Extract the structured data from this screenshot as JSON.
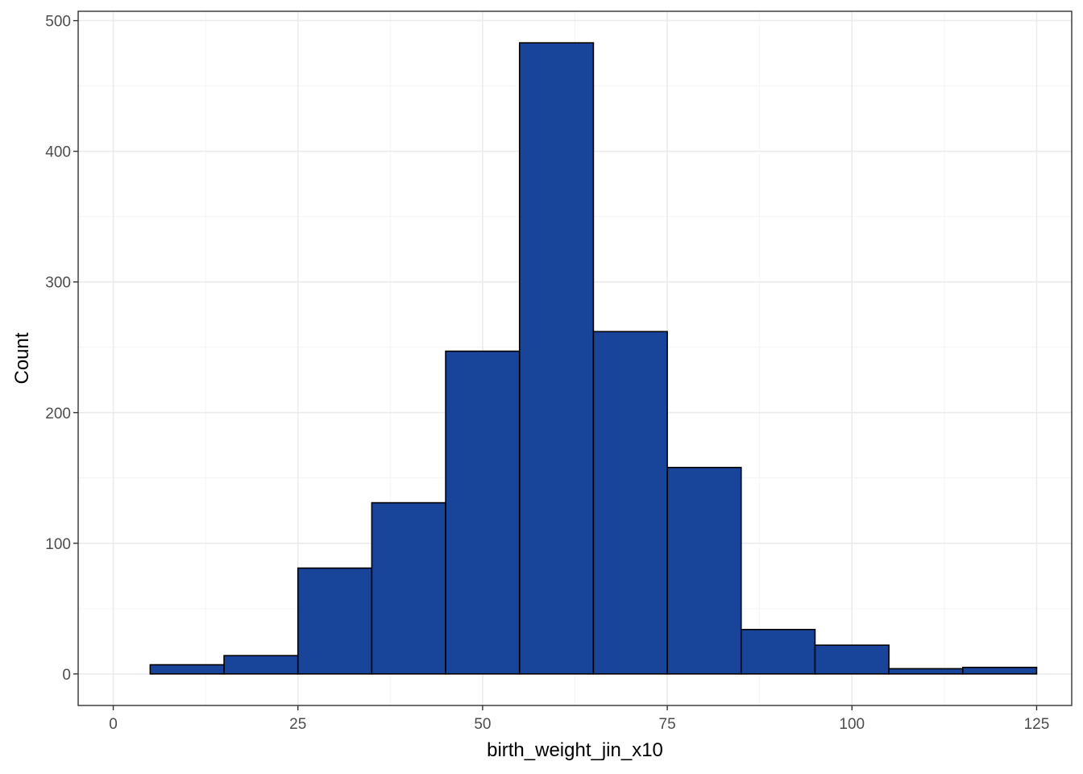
{
  "chart_data": {
    "type": "bar",
    "subtype": "histogram",
    "xlabel": "birth_weight_jin_x10",
    "ylabel": "Count",
    "xlim": [
      0,
      125
    ],
    "ylim": [
      0,
      500
    ],
    "x_ticks": [
      "0",
      "25",
      "50",
      "75",
      "100",
      "125"
    ],
    "y_ticks": [
      "0",
      "100",
      "200",
      "300",
      "400",
      "500"
    ],
    "bin_width": 10,
    "bins": [
      {
        "x_start": 5,
        "x_end": 15,
        "count": 7
      },
      {
        "x_start": 15,
        "x_end": 25,
        "count": 14
      },
      {
        "x_start": 25,
        "x_end": 35,
        "count": 81
      },
      {
        "x_start": 35,
        "x_end": 45,
        "count": 131
      },
      {
        "x_start": 45,
        "x_end": 55,
        "count": 247
      },
      {
        "x_start": 55,
        "x_end": 65,
        "count": 483
      },
      {
        "x_start": 65,
        "x_end": 75,
        "count": 262
      },
      {
        "x_start": 75,
        "x_end": 85,
        "count": 158
      },
      {
        "x_start": 85,
        "x_end": 95,
        "count": 34
      },
      {
        "x_start": 95,
        "x_end": 105,
        "count": 22
      },
      {
        "x_start": 105,
        "x_end": 115,
        "count": 4
      },
      {
        "x_start": 115,
        "x_end": 125,
        "count": 5
      }
    ],
    "grid": true,
    "colors": {
      "bar_fill": "#18449a",
      "bar_stroke": "#000000",
      "grid_major": "#ebebeb",
      "grid_minor": "#f4f4f4",
      "panel_border": "#333333"
    }
  }
}
